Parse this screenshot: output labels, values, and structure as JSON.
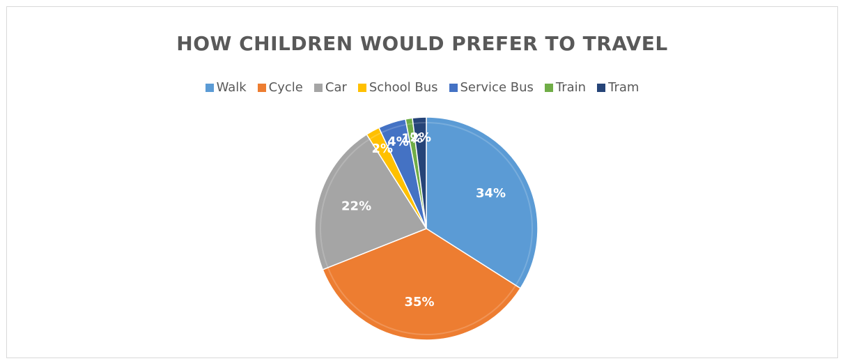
{
  "chart_data": {
    "type": "pie",
    "title": "HOW CHILDREN WOULD PREFER TO TRAVEL",
    "legend_position": "top",
    "slices": [
      {
        "label": "Walk",
        "value": 34,
        "display": "34%",
        "color": "#5B9BD5"
      },
      {
        "label": "Cycle",
        "value": 35,
        "display": "35%",
        "color": "#ED7D31"
      },
      {
        "label": "Car",
        "value": 22,
        "display": "22%",
        "color": "#A5A5A5"
      },
      {
        "label": "School Bus",
        "value": 2,
        "display": "2%",
        "color": "#FFC000"
      },
      {
        "label": "Service Bus",
        "value": 4,
        "display": "4%",
        "color": "#4472C4"
      },
      {
        "label": "Train",
        "value": 1,
        "display": "1%",
        "color": "#70AD47"
      },
      {
        "label": "Tram",
        "value": 2,
        "display": "2%",
        "color": "#264478"
      }
    ]
  }
}
